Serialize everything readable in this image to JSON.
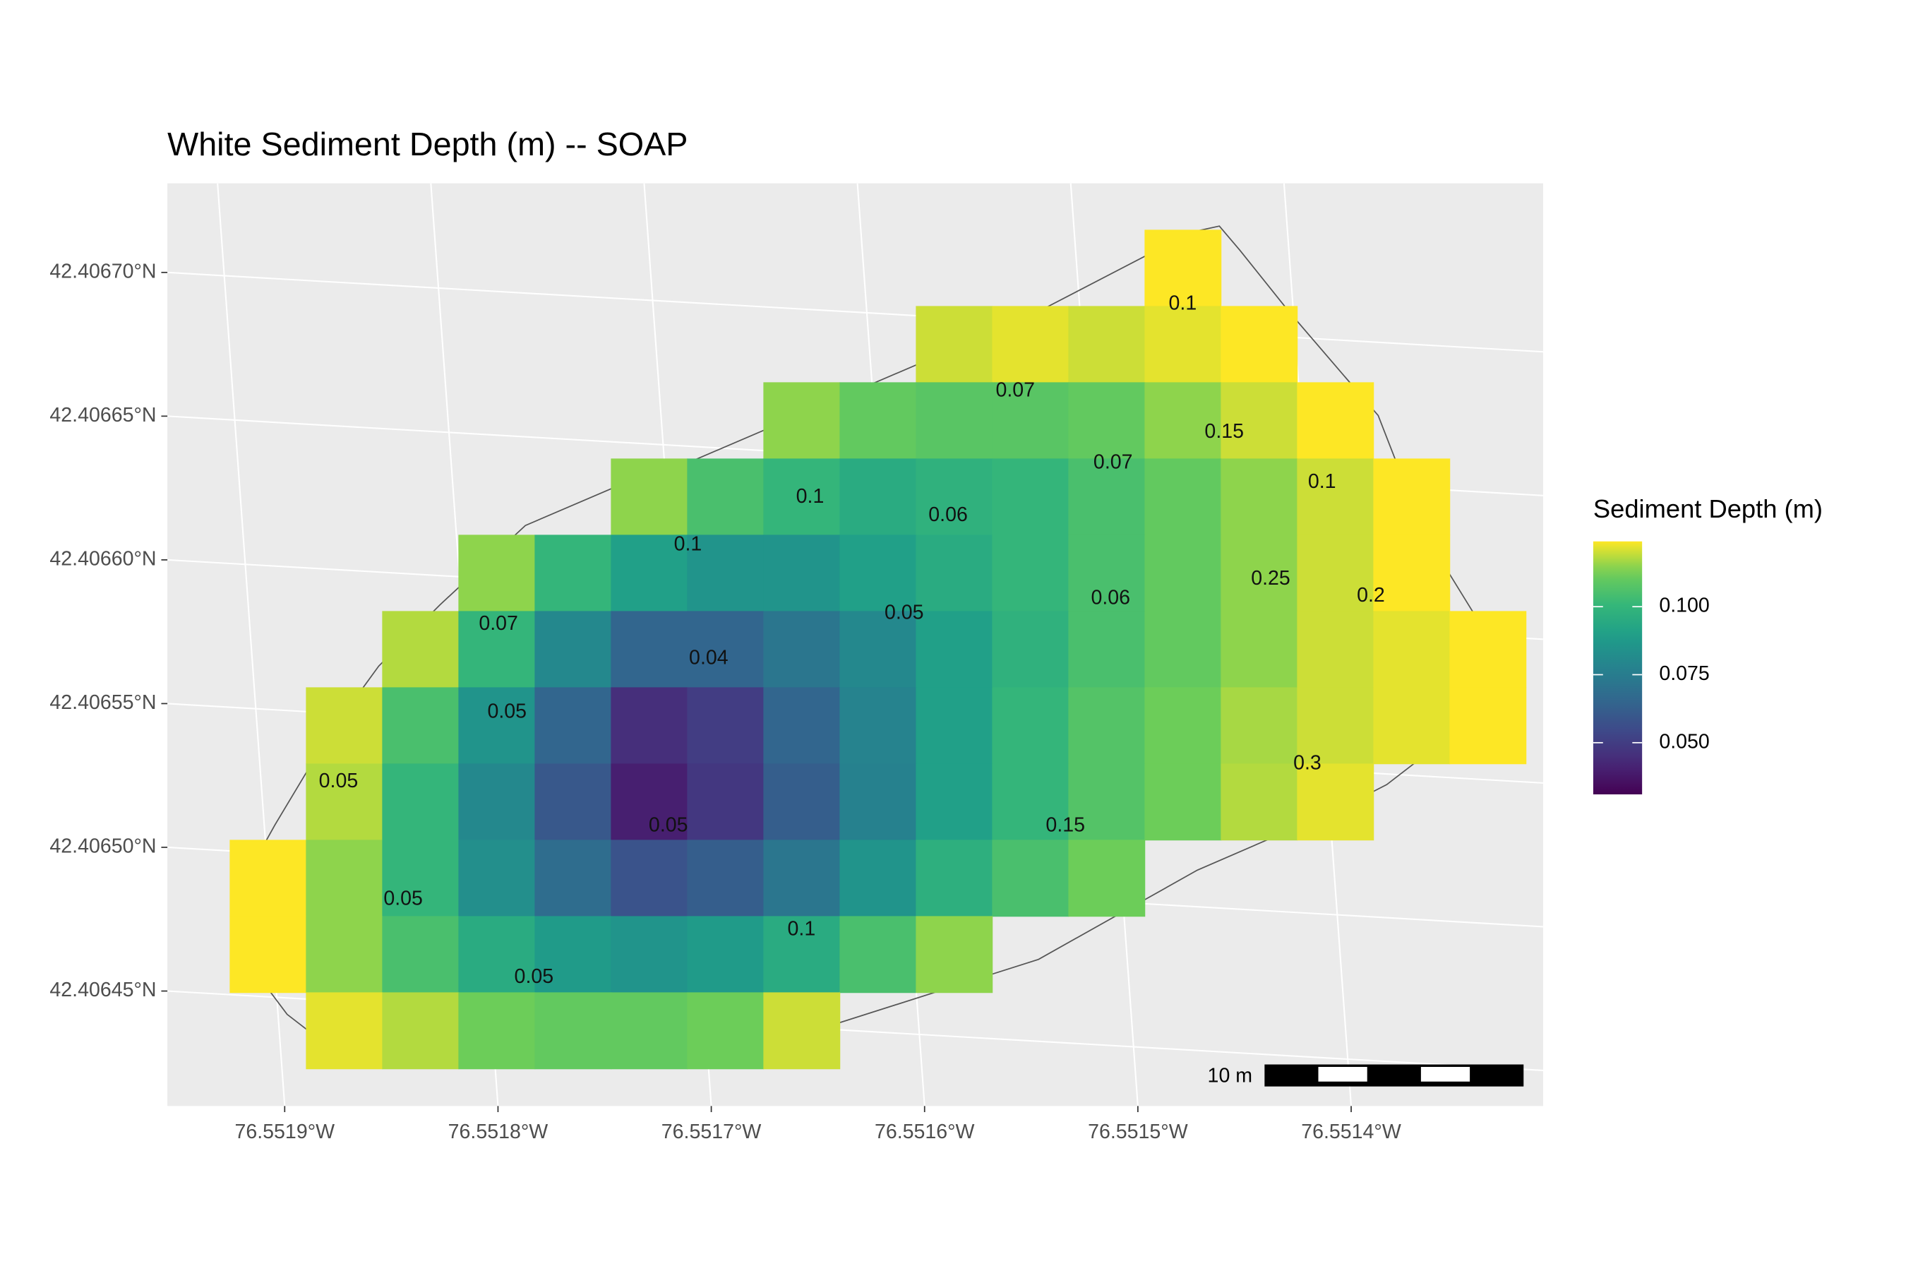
{
  "chart_data": {
    "type": "map",
    "title": "White Sediment Depth (m) -- SOAP",
    "xlim": [
      -76.551955,
      -76.55131
    ],
    "ylim": [
      42.40641,
      42.406731
    ],
    "xticks": [
      {
        "value": -76.5519,
        "label": "76.5519°W"
      },
      {
        "value": -76.5518,
        "label": "76.5518°W"
      },
      {
        "value": -76.5517,
        "label": "76.5517°W"
      },
      {
        "value": -76.5516,
        "label": "76.5516°W"
      },
      {
        "value": -76.5515,
        "label": "76.5515°W"
      },
      {
        "value": -76.5514,
        "label": "76.5514°W"
      }
    ],
    "yticks": [
      {
        "value": 42.40645,
        "label": "42.40645°N"
      },
      {
        "value": 42.4065,
        "label": "42.40650°N"
      },
      {
        "value": 42.40655,
        "label": "42.40655°N"
      },
      {
        "value": 42.4066,
        "label": "42.40660°N"
      },
      {
        "value": 42.40665,
        "label": "42.40665°N"
      },
      {
        "value": 42.4067,
        "label": "42.40670°N"
      }
    ],
    "grid": true,
    "colormap": "viridis",
    "color_limits": [
      0.031,
      0.124
    ],
    "raster": [
      [
        null,
        null,
        null,
        null,
        null,
        null,
        null,
        null,
        null,
        null,
        null,
        null,
        0.125,
        null,
        null,
        null,
        null
      ],
      [
        null,
        null,
        null,
        null,
        null,
        null,
        null,
        null,
        null,
        0.12,
        0.122,
        0.12,
        0.122,
        0.125,
        null,
        null,
        null
      ],
      [
        null,
        null,
        null,
        null,
        null,
        null,
        null,
        0.115,
        0.11,
        0.108,
        0.108,
        0.11,
        0.115,
        0.12,
        0.125,
        null,
        null
      ],
      [
        null,
        null,
        null,
        null,
        null,
        0.115,
        0.105,
        0.1,
        0.095,
        0.098,
        0.1,
        0.105,
        0.11,
        0.115,
        0.12,
        0.125,
        null
      ],
      [
        null,
        null,
        null,
        0.115,
        0.1,
        0.09,
        0.085,
        0.085,
        0.09,
        0.095,
        0.1,
        0.105,
        0.11,
        0.115,
        0.12,
        0.125,
        null
      ],
      [
        null,
        null,
        0.118,
        0.1,
        0.08,
        0.065,
        0.065,
        0.072,
        0.08,
        0.09,
        0.098,
        0.105,
        0.11,
        0.115,
        0.12,
        0.122,
        0.125
      ],
      [
        null,
        0.12,
        0.105,
        0.085,
        0.065,
        0.045,
        0.05,
        0.065,
        0.078,
        0.09,
        0.1,
        0.107,
        0.112,
        0.117,
        0.12,
        0.122,
        0.125
      ],
      [
        null,
        0.118,
        0.1,
        0.08,
        0.06,
        0.04,
        0.048,
        0.062,
        0.077,
        0.09,
        0.1,
        0.107,
        0.112,
        0.118,
        0.122,
        null,
        null
      ],
      [
        0.125,
        0.115,
        0.1,
        0.083,
        0.068,
        0.058,
        0.062,
        0.072,
        0.085,
        0.097,
        0.105,
        0.112,
        null,
        null,
        null,
        null,
        null
      ],
      [
        0.125,
        0.115,
        0.105,
        0.095,
        0.088,
        0.085,
        0.088,
        0.095,
        0.105,
        0.115,
        null,
        null,
        null,
        null,
        null,
        null,
        null
      ],
      [
        null,
        0.122,
        0.118,
        0.112,
        0.11,
        0.11,
        0.112,
        0.12,
        null,
        null,
        null,
        null,
        null,
        null,
        null,
        null,
        null
      ]
    ],
    "legend": {
      "title": "Sediment Depth (m)",
      "ticks": [
        {
          "value": 0.05,
          "label": "0.050"
        },
        {
          "value": 0.075,
          "label": "0.075"
        },
        {
          "value": 0.1,
          "label": "0.100"
        }
      ]
    },
    "point_labels": [
      0.1,
      0.07,
      0.15,
      0.07,
      0.1,
      0.1,
      0.06,
      0.1,
      0.25,
      0.2,
      0.06,
      0.05,
      0.07,
      0.04,
      0.05,
      0.05,
      0.3,
      0.05,
      0.15,
      0.05,
      0.1,
      0.05
    ],
    "scale_bar": "10 m"
  }
}
